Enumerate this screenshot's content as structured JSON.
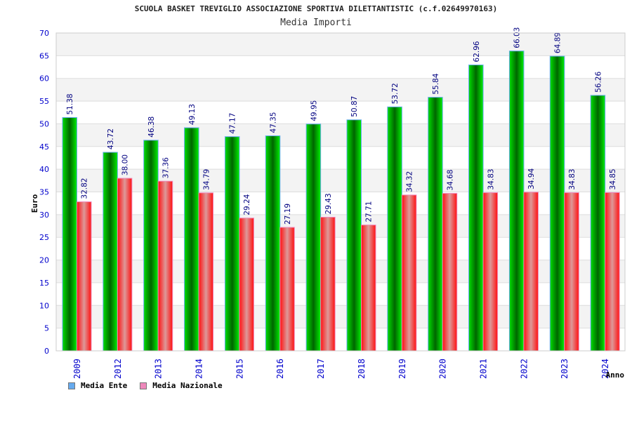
{
  "chart_data": {
    "type": "bar",
    "title": "SCUOLA BASKET TREVIGLIO ASSOCIAZIONE SPORTIVA DILETTANTISTIC (c.f.02649970163)",
    "subtitle": "Media Importi",
    "xlabel": "Anno",
    "ylabel": "Euro",
    "ylim": [
      0,
      70
    ],
    "yticks": [
      0,
      5,
      10,
      15,
      20,
      25,
      30,
      35,
      40,
      45,
      50,
      55,
      60,
      65,
      70
    ],
    "grid": true,
    "legend_position": "bottom-left",
    "categories": [
      "2009",
      "2012",
      "2013",
      "2014",
      "2015",
      "2016",
      "2017",
      "2018",
      "2019",
      "2020",
      "2021",
      "2022",
      "2023",
      "2024"
    ],
    "series": [
      {
        "name": "Media Ente",
        "color": "#00cc00",
        "legend_color": "#66aaee",
        "values": [
          51.38,
          43.72,
          46.38,
          49.13,
          47.17,
          47.35,
          49.95,
          50.87,
          53.72,
          55.84,
          62.96,
          66.03,
          64.89,
          56.26
        ],
        "labels": [
          "51.38",
          "43.72",
          "46.38",
          "49.13",
          "47.17",
          "47.35",
          "49.95",
          "50.87",
          "53.72",
          "55.84",
          "62.96",
          "66.03",
          "64.89",
          "56.26"
        ]
      },
      {
        "name": "Media Nazionale",
        "color": "#ff2020",
        "legend_color": "#ee88bb",
        "values": [
          32.82,
          38.0,
          37.36,
          34.79,
          29.24,
          27.19,
          29.43,
          27.71,
          34.32,
          34.68,
          34.83,
          34.94,
          34.83,
          34.85
        ],
        "labels": [
          "32.82",
          "38.00",
          "37.36",
          "34.79",
          "29.24",
          "27.19",
          "29.43",
          "27.71",
          "34.32",
          "34.68",
          "34.83",
          "34.94",
          "34.83",
          "34.85"
        ]
      }
    ]
  }
}
